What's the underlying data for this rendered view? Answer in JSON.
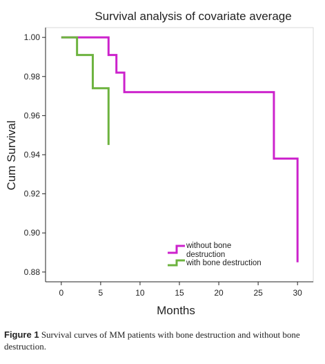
{
  "chart_data": {
    "type": "line",
    "title": "Survival analysis of covariate average",
    "xlabel": "Months",
    "ylabel": "Cum Survival",
    "xlim": [
      -2,
      32
    ],
    "ylim": [
      0.875,
      1.005
    ],
    "xticks": [
      "0",
      "5",
      "10",
      "15",
      "20",
      "25",
      "30"
    ],
    "xtick_values": [
      0,
      5,
      10,
      15,
      20,
      25,
      30
    ],
    "yticks": [
      "0.88",
      "0.90",
      "0.92",
      "0.94",
      "0.96",
      "0.98",
      "1.00"
    ],
    "ytick_values": [
      0.88,
      0.9,
      0.92,
      0.94,
      0.96,
      0.98,
      1.0
    ],
    "grid": false,
    "legend_position": "bottom-right",
    "series": [
      {
        "name": "without bone destruction",
        "color": "#cc22cc",
        "step": true,
        "x": [
          0,
          6,
          7,
          8,
          27,
          30,
          30
        ],
        "y": [
          1.0,
          0.991,
          0.982,
          0.972,
          0.938,
          0.938,
          0.885
        ]
      },
      {
        "name": "with bone destruction",
        "color": "#6db33f",
        "step": true,
        "x": [
          0,
          2,
          4,
          6,
          6
        ],
        "y": [
          1.0,
          0.991,
          0.974,
          0.974,
          0.945
        ]
      }
    ]
  },
  "caption": {
    "label": "Figure 1",
    "text": "Survival curves of MM patients with bone destruction and without bone destruction."
  }
}
